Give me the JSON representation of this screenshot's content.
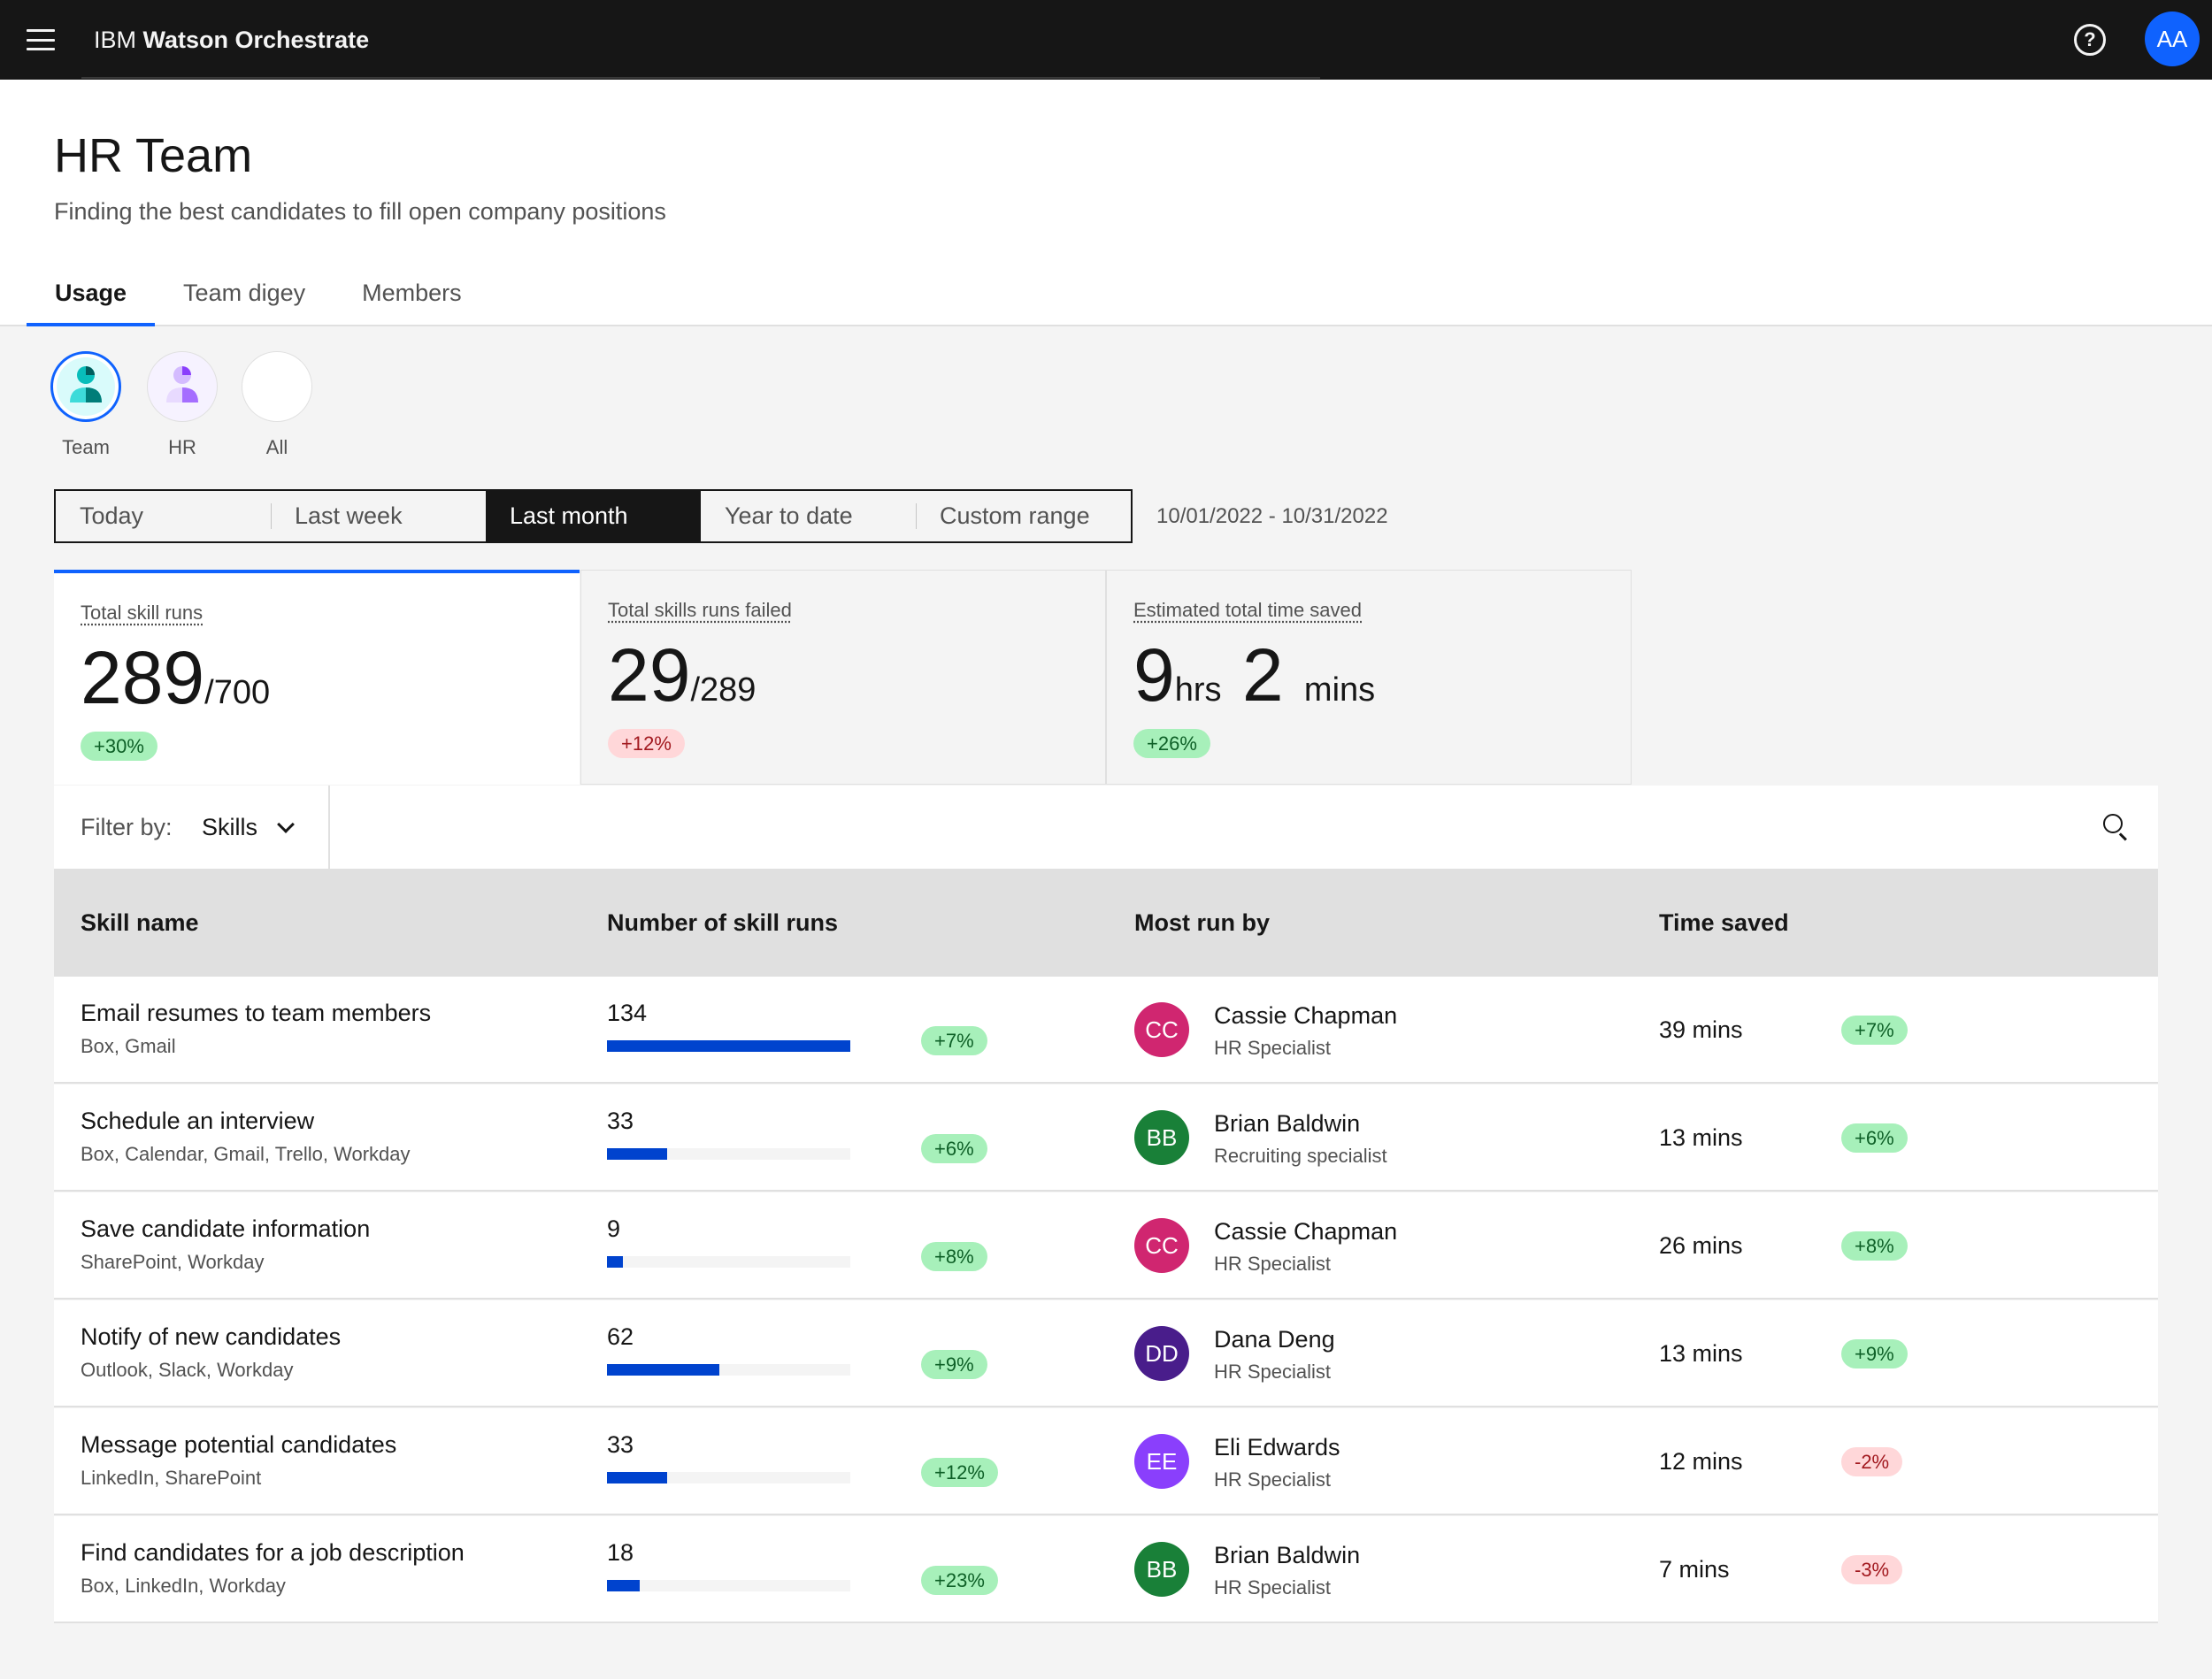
{
  "app": {
    "brand_prefix": "IBM",
    "brand_name": "Watson Orchestrate",
    "help_icon": "help-icon",
    "user_initials": "AA",
    "accent": "#0f62fe"
  },
  "header": {
    "title": "HR Team",
    "subtitle": "Finding the best candidates to fill open company positions"
  },
  "tabs": [
    {
      "label": "Usage",
      "active": true
    },
    {
      "label": "Team digey",
      "active": false
    },
    {
      "label": "Members",
      "active": false
    }
  ],
  "personas": [
    {
      "label": "Team",
      "selected": true
    },
    {
      "label": "HR",
      "selected": false
    },
    {
      "label": "All",
      "selected": false
    }
  ],
  "date_filter": {
    "options": [
      "Today",
      "Last week",
      "Last month",
      "Year to date",
      "Custom range"
    ],
    "selected": "Last month",
    "range": "10/01/2022 - 10/31/2022"
  },
  "metrics": [
    {
      "label": "Total skill runs",
      "value": "289",
      "suffix": "/700",
      "change": "+30%",
      "trend": "up"
    },
    {
      "label": "Total skills runs failed",
      "value": "29",
      "suffix": "/289",
      "change": "+12%",
      "trend": "down"
    },
    {
      "label": "Estimated total time saved",
      "value_a": "9",
      "unit_a": "hrs",
      "value_b": "2",
      "unit_b": "mins",
      "change": "+26%",
      "trend": "up"
    }
  ],
  "filter": {
    "label": "Filter by:",
    "value": "Skills"
  },
  "table": {
    "columns": [
      "Skill name",
      "Number of skill runs",
      "Most run by",
      "Time saved"
    ],
    "max_runs": 134,
    "rows": [
      {
        "skill": "Email resumes to team members",
        "apps": "Box, Gmail",
        "runs": "134",
        "runs_value": 134,
        "runs_change": "+7%",
        "initials": "CC",
        "avatar_color": "#d02670",
        "person": "Cassie Chapman",
        "role": "HR Specialist",
        "saved": "39 mins",
        "saved_change": "+7%",
        "saved_trend": "up"
      },
      {
        "skill": "Schedule an interview",
        "apps": "Box, Calendar, Gmail, Trello, Workday",
        "runs": "33",
        "runs_value": 33,
        "runs_change": "+6%",
        "initials": "BB",
        "avatar_color": "#198038",
        "person": "Brian Baldwin",
        "role": "Recruiting specialist",
        "saved": "13 mins",
        "saved_change": "+6%",
        "saved_trend": "up"
      },
      {
        "skill": "Save candidate information",
        "apps": "SharePoint, Workday",
        "runs": "9",
        "runs_value": 9,
        "runs_change": "+8%",
        "initials": "CC",
        "avatar_color": "#d02670",
        "person": "Cassie Chapman",
        "role": "HR Specialist",
        "saved": "26 mins",
        "saved_change": "+8%",
        "saved_trend": "up"
      },
      {
        "skill": "Notify of new candidates",
        "apps": "Outlook, Slack, Workday",
        "runs": "62",
        "runs_value": 62,
        "runs_change": "+9%",
        "initials": "DD",
        "avatar_color": "#491d8b",
        "person": "Dana Deng",
        "role": "HR Specialist",
        "saved": "13 mins",
        "saved_change": "+9%",
        "saved_trend": "up"
      },
      {
        "skill": "Message potential candidates",
        "apps": "LinkedIn, SharePoint",
        "runs": "33",
        "runs_value": 33,
        "runs_change": "+12%",
        "initials": "EE",
        "avatar_color": "#8a3ffc",
        "person": "Eli Edwards",
        "role": "HR Specialist",
        "saved": "12 mins",
        "saved_change": "-2%",
        "saved_trend": "down"
      },
      {
        "skill": "Find candidates for a job description",
        "apps": "Box, LinkedIn, Workday",
        "runs": "18",
        "runs_value": 18,
        "runs_change": "+23%",
        "initials": "BB",
        "avatar_color": "#198038",
        "person": "Brian Baldwin",
        "role": "HR Specialist",
        "saved": "7 mins",
        "saved_change": "-3%",
        "saved_trend": "down"
      }
    ]
  }
}
